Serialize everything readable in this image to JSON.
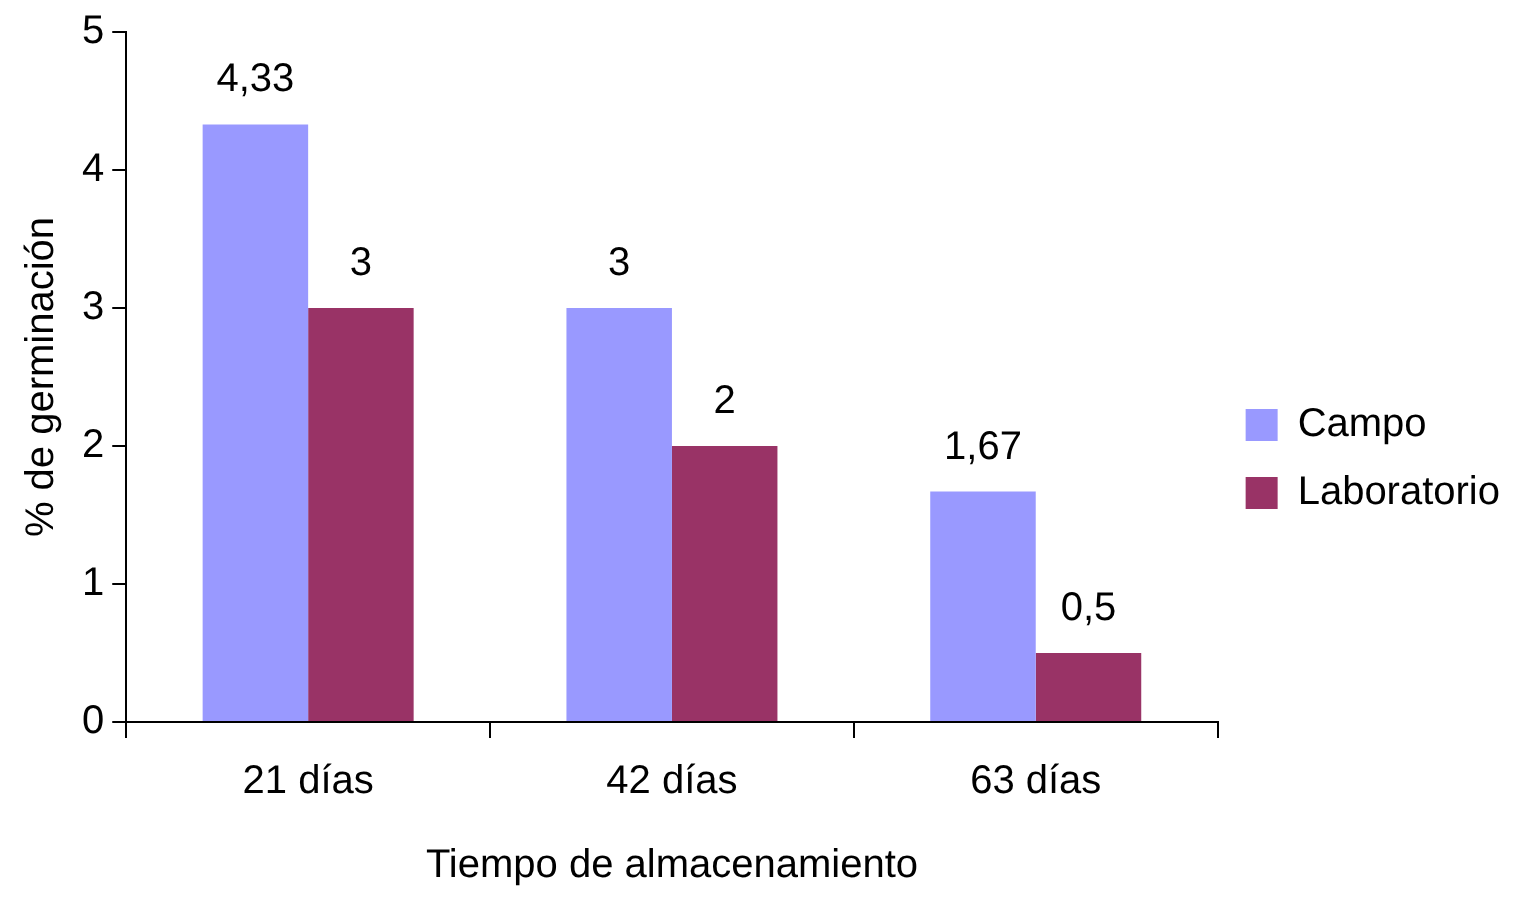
{
  "chart_data": {
    "type": "bar",
    "xlabel": "Tiempo de almacenamiento",
    "ylabel": "% de germinación",
    "categories": [
      "21 días",
      "42 días",
      "63 días"
    ],
    "series": [
      {
        "name": "Campo",
        "color": "#9999ff",
        "values": [
          4.33,
          3,
          1.67
        ],
        "value_labels": [
          "4,33",
          "3",
          "1,67"
        ]
      },
      {
        "name": "Laboratorio",
        "color": "#993366",
        "values": [
          3,
          2,
          0.5
        ],
        "value_labels": [
          "3",
          "2",
          "0,5"
        ]
      }
    ],
    "ylim": [
      0,
      5
    ],
    "yticks": [
      0,
      1,
      2,
      3,
      4,
      5
    ],
    "grid": false,
    "legend": "right"
  }
}
